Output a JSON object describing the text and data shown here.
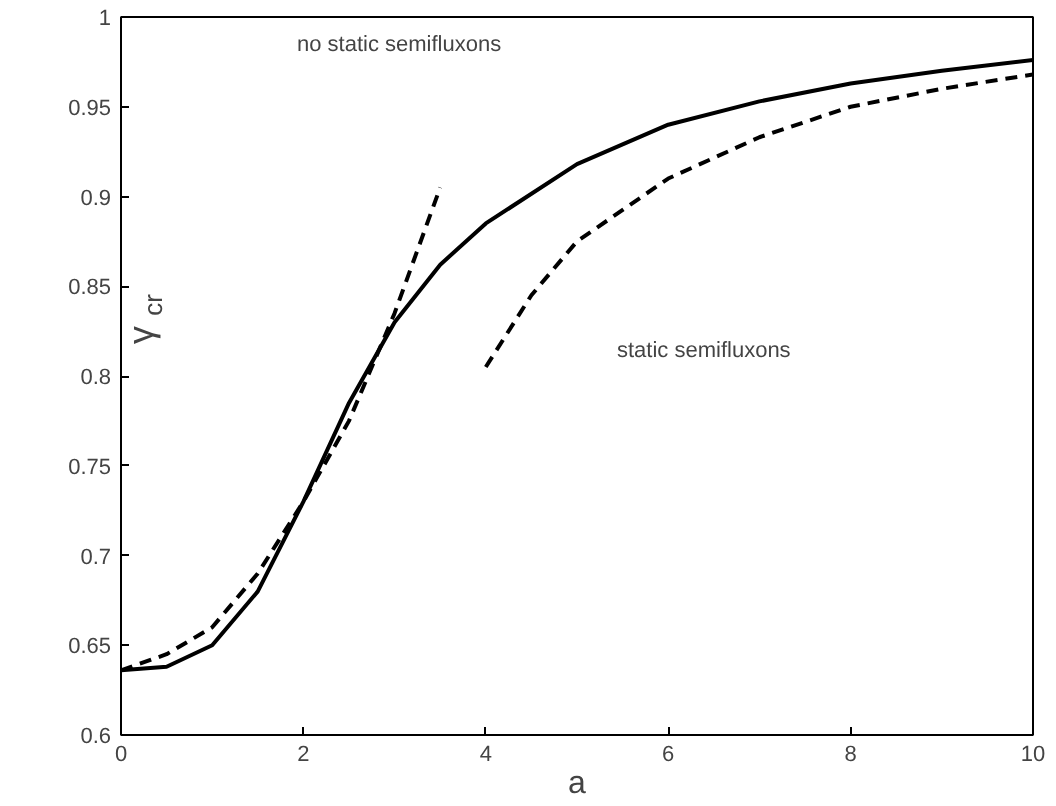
{
  "chart_data": {
    "type": "line",
    "xlabel": "a",
    "ylabel": "γ$_{cr}$",
    "xlim": [
      0,
      10
    ],
    "ylim": [
      0.6,
      1
    ],
    "xticks": [
      0,
      2,
      4,
      6,
      8,
      10
    ],
    "yticks": [
      0.6,
      0.65,
      0.7,
      0.75,
      0.8,
      0.85,
      0.9,
      0.95,
      1
    ],
    "grid": false,
    "series": [
      {
        "color": "#000000",
        "line_style": "solid",
        "x": [
          0,
          0.5,
          1,
          1.5,
          2,
          2.5,
          3,
          3.5,
          4,
          5,
          6,
          7,
          8,
          9,
          10
        ],
        "values": [
          0.636,
          0.638,
          0.65,
          0.68,
          0.73,
          0.785,
          0.83,
          0.862,
          0.885,
          0.918,
          0.94,
          0.953,
          0.963,
          0.97,
          0.976
        ]
      },
      {
        "color": "#000000",
        "line_style": "dashed",
        "x": [
          0,
          0.5,
          1,
          1.5,
          2,
          2.5,
          3,
          3.5
        ],
        "values": [
          0.636,
          0.645,
          0.66,
          0.69,
          0.73,
          0.775,
          0.835,
          0.905
        ]
      },
      {
        "color": "#000000",
        "line_style": "dashed",
        "x": [
          4,
          4.5,
          5,
          6,
          7,
          8,
          9,
          10
        ],
        "values": [
          0.805,
          0.845,
          0.875,
          0.91,
          0.933,
          0.95,
          0.96,
          0.968
        ]
      }
    ],
    "annotations": [
      "no static semifluxons",
      "static semifluxons"
    ]
  }
}
